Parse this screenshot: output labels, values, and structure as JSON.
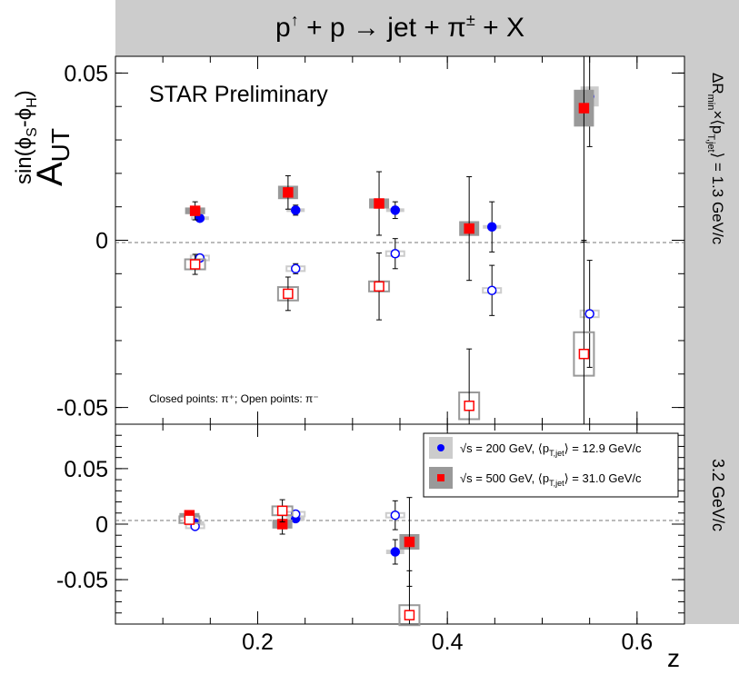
{
  "title": "p↑ + p → jet + π± + X",
  "title_parts": {
    "p": "p",
    "arrow": "↑",
    "plus": " + p → jet + π",
    "pm": "±",
    "tail": " + X"
  },
  "watermark": "STAR Preliminary",
  "note": "Closed points: π⁺; Open points: π⁻",
  "ylabel_parts": {
    "main": "A",
    "sub": "UT",
    "sup": "sin(ϕ",
    "sup_s": "S",
    "sup_mid": "-ϕ",
    "sup_h": "H",
    "sup_end": ")"
  },
  "xlabel": "z",
  "side_label_top": "ΔRₘᵢₙ×⟨pₜ,jet⟩ = 1.3 GeV/c",
  "side_top_parts": {
    "a": "ΔR",
    "b": "min",
    "c": "×⟨p",
    "d": "T,jet",
    "e": "⟩ = 1.3 GeV/c"
  },
  "side_label_bottom": "3.2 GeV/c",
  "legend": [
    {
      "prefix": "√s = 200 GeV, ⟨p",
      "sub": "T,jet",
      "suffix": "⟩ = 12.9 GeV/c",
      "color": "#0000ff",
      "box": "#cccccc"
    },
    {
      "prefix": "√s = 500 GeV, ⟨p",
      "sub": "T,jet",
      "suffix": "⟩ = 31.0 GeV/c",
      "color": "#ff0000",
      "box": "#999999"
    }
  ],
  "colors": {
    "blue": "#0000ff",
    "red": "#ff0000",
    "band": "#cccccc",
    "sidebar": "#cccccc"
  },
  "chart_data": [
    {
      "type": "scatter",
      "panel": "top",
      "xlim": [
        0.05,
        0.65
      ],
      "ylim": [
        -0.055,
        0.055
      ],
      "x_ticks": [
        "0.2",
        "0.4",
        "0.6"
      ],
      "y_ticks": [
        "0.05",
        "0",
        "-0.05"
      ],
      "y_tick_values": [
        0.05,
        0,
        -0.05
      ],
      "x_tick_values": [
        0.2,
        0.4,
        0.6
      ],
      "series": [
        {
          "name": "√s = 200 GeV, π⁺",
          "style": "blue-closed",
          "points": [
            {
              "x": 0.139,
              "y": 0.0066,
              "err": 0.001,
              "sys": 0.0005
            },
            {
              "x": 0.24,
              "y": 0.009,
              "err": 0.0015,
              "sys": 0.0005
            },
            {
              "x": 0.345,
              "y": 0.009,
              "err": 0.0025,
              "sys": 0.0005
            },
            {
              "x": 0.447,
              "y": 0.004,
              "err": 0.0075,
              "sys": 0.0005
            },
            {
              "x": 0.55,
              "y": 0.043,
              "err": 0.015,
              "sys": 0.003
            }
          ]
        },
        {
          "name": "√s = 200 GeV, π⁻",
          "style": "blue-open",
          "points": [
            {
              "x": 0.139,
              "y": -0.0053,
              "err": 0.001,
              "sys": 0.0007
            },
            {
              "x": 0.24,
              "y": -0.0085,
              "err": 0.0015,
              "sys": 0.0007
            },
            {
              "x": 0.345,
              "y": -0.004,
              "err": 0.0045,
              "sys": 0.0007
            },
            {
              "x": 0.447,
              "y": -0.015,
              "err": 0.0075,
              "sys": 0.0007
            },
            {
              "x": 0.55,
              "y": -0.022,
              "err": 0.016,
              "sys": 0.001
            }
          ]
        },
        {
          "name": "√s = 500 GeV, π⁺",
          "style": "red-closed",
          "points": [
            {
              "x": 0.134,
              "y": 0.0088,
              "err": 0.0027,
              "sys": 0.001
            },
            {
              "x": 0.232,
              "y": 0.0143,
              "err": 0.005,
              "sys": 0.002
            },
            {
              "x": 0.328,
              "y": 0.011,
              "err": 0.0095,
              "sys": 0.0015
            },
            {
              "x": 0.423,
              "y": 0.0035,
              "err": 0.0155,
              "sys": 0.0022
            },
            {
              "x": 0.544,
              "y": 0.0395,
              "err": 0.04,
              "sys": 0.0055
            }
          ]
        },
        {
          "name": "√s = 500 GeV, π⁻",
          "style": "red-open",
          "points": [
            {
              "x": 0.134,
              "y": -0.0072,
              "err": 0.003,
              "sys": 0.0015
            },
            {
              "x": 0.232,
              "y": -0.016,
              "err": 0.005,
              "sys": 0.002
            },
            {
              "x": 0.328,
              "y": -0.0138,
              "err": 0.01,
              "sys": 0.0015
            },
            {
              "x": 0.423,
              "y": -0.0495,
              "err": 0.017,
              "sys": 0.004
            },
            {
              "x": 0.544,
              "y": -0.034,
              "err": 0.034,
              "sys": 0.0065
            }
          ]
        }
      ]
    },
    {
      "type": "scatter",
      "panel": "bottom",
      "xlim": [
        0.05,
        0.65
      ],
      "ylim": [
        -0.09,
        0.09
      ],
      "x_ticks": [
        "0.2",
        "0.4",
        "0.6"
      ],
      "y_ticks": [
        "0.05",
        "0",
        "-0.05"
      ],
      "y_tick_values": [
        0.05,
        0,
        -0.05
      ],
      "x_tick_values": [
        0.2,
        0.4,
        0.6
      ],
      "series": [
        {
          "name": "√s = 200 GeV, π⁺",
          "style": "blue-closed",
          "points": [
            {
              "x": 0.134,
              "y": 0.001,
              "err": 0.001,
              "sys": 0.001
            },
            {
              "x": 0.24,
              "y": 0.005,
              "err": 0.003,
              "sys": 0.002
            },
            {
              "x": 0.345,
              "y": -0.025,
              "err": 0.011,
              "sys": 0.002
            }
          ]
        },
        {
          "name": "√s = 200 GeV, π⁻",
          "style": "blue-open",
          "points": [
            {
              "x": 0.134,
              "y": -0.002,
              "err": 0.001,
              "sys": 0.001
            },
            {
              "x": 0.24,
              "y": 0.009,
              "err": 0.003,
              "sys": 0.002
            },
            {
              "x": 0.345,
              "y": 0.008,
              "err": 0.013,
              "sys": 0.002
            }
          ]
        },
        {
          "name": "√s = 500 GeV, π⁺",
          "style": "red-closed",
          "points": [
            {
              "x": 0.128,
              "y": 0.008,
              "err": 0.002,
              "sys": 0.002
            },
            {
              "x": 0.226,
              "y": 0.0,
              "err": 0.009,
              "sys": 0.004
            },
            {
              "x": 0.36,
              "y": -0.016,
              "err": 0.04,
              "sys": 0.007
            }
          ]
        },
        {
          "name": "√s = 500 GeV, π⁻",
          "style": "red-open",
          "points": [
            {
              "x": 0.128,
              "y": 0.004,
              "err": 0.002,
              "sys": 0.003
            },
            {
              "x": 0.226,
              "y": 0.012,
              "err": 0.01,
              "sys": 0.004
            },
            {
              "x": 0.36,
              "y": -0.082,
              "err": 0.04,
              "sys": 0.01
            }
          ]
        }
      ]
    }
  ]
}
